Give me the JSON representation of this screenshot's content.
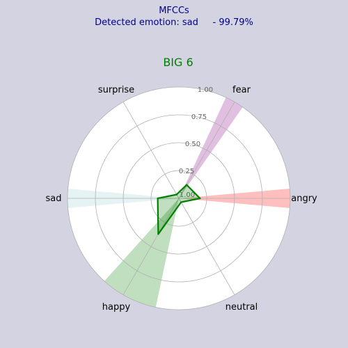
{
  "header": {
    "line1": "MFCCs",
    "line2": "Detected emotion: sad     - 99.79%"
  },
  "chart_data": {
    "type": "radar",
    "title": "BIG 6",
    "categories": [
      "angry",
      "fear",
      "surprise",
      "sad",
      "happy",
      "neutral"
    ],
    "angles_deg": [
      0,
      60,
      120,
      180,
      240,
      300
    ],
    "rlim": [
      0,
      1.0
    ],
    "rticks": [
      0.25,
      0.5,
      0.75,
      1.0
    ],
    "rtick_labels": [
      "0.25",
      "0.50",
      "0.75",
      "1.00"
    ],
    "center_tick_label": "1.00",
    "grid": true,
    "series": [
      {
        "values": [
          0.19,
          0.14,
          0.04,
          0.19,
          0.37,
          0.04
        ],
        "color": "#008000"
      }
    ],
    "sector_highlights": [
      {
        "category": "angry",
        "color": "#ffbfbf",
        "start_deg": -5,
        "end_deg": 5
      },
      {
        "category": "fear",
        "color": "#e0bfe0",
        "start_deg": 55,
        "end_deg": 65
      },
      {
        "category": "sad",
        "color": "#e6f3f4",
        "start_deg": 175,
        "end_deg": 185
      },
      {
        "category": "happy",
        "color": "#bfdfbf",
        "start_deg": 228,
        "end_deg": 258
      }
    ]
  }
}
